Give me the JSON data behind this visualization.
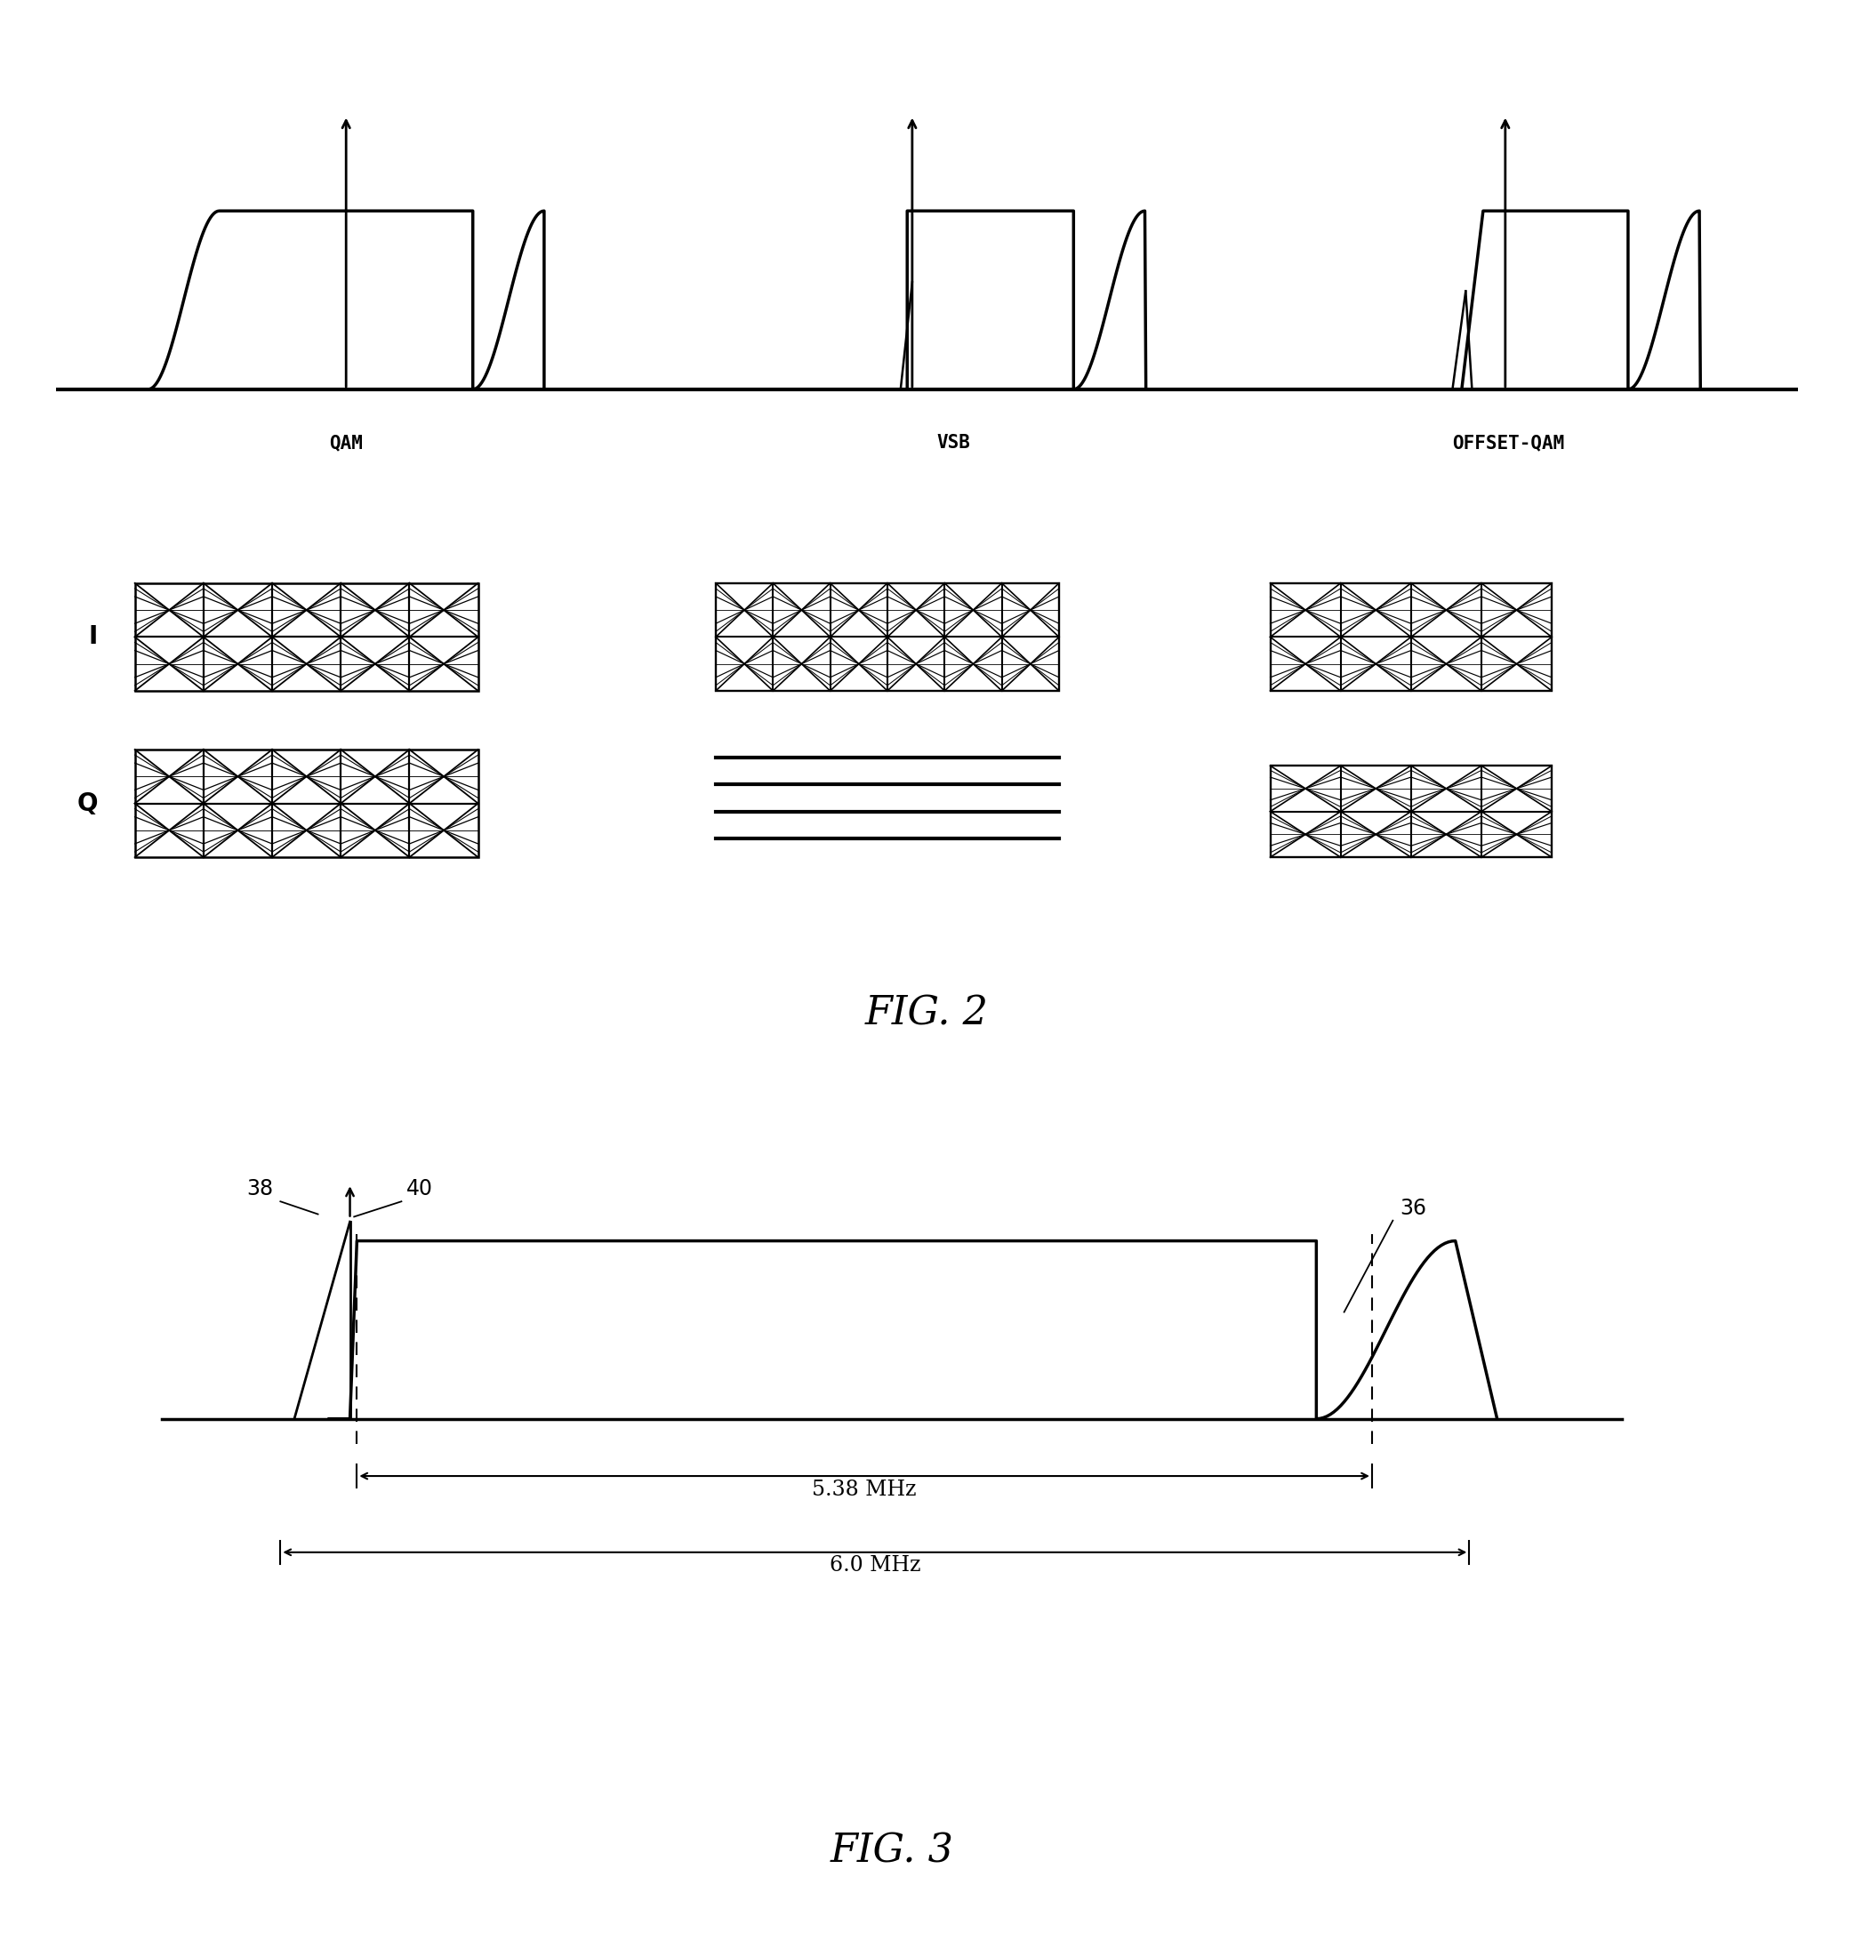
{
  "fig_width": 20.85,
  "fig_height": 21.83,
  "bg_color": "#ffffff",
  "fig2_title": "FIG. 2",
  "fig3_title": "FIG. 3",
  "spectrum_labels": [
    "QAM",
    "VSB",
    "OFFSET-QAM"
  ],
  "iq_labels": [
    "I",
    "Q"
  ],
  "fig3_label_38": "38",
  "fig3_label_40": "40",
  "fig3_label_36": "36",
  "fig3_bandwidth_inner": "5.38 MHz",
  "fig3_bandwidth_outer": "6.0 MHz"
}
